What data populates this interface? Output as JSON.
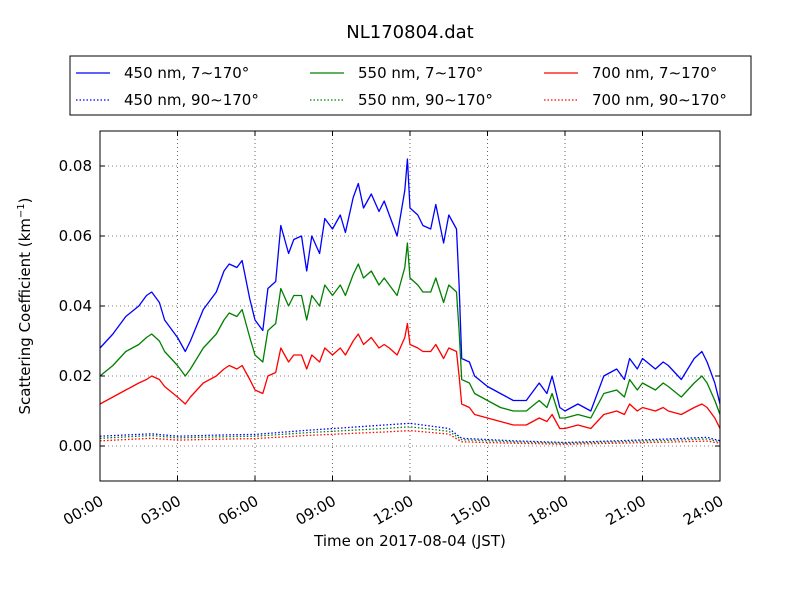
{
  "chart_data": {
    "type": "line",
    "title": "NL170804.dat",
    "xlabel": "Time on 2017-08-04 (JST)",
    "ylabel_main": "Scattering Coefficient (km",
    "ylabel_exp": "−1",
    "ylabel_close": ")",
    "xlim": [
      0,
      24
    ],
    "ylim": [
      -0.01,
      0.09
    ],
    "x_ticks": [
      0,
      3,
      6,
      9,
      12,
      15,
      18,
      21,
      24
    ],
    "x_tick_labels": [
      "00:00",
      "03:00",
      "06:00",
      "09:00",
      "12:00",
      "15:00",
      "18:00",
      "21:00",
      "24:00"
    ],
    "y_ticks": [
      0.0,
      0.02,
      0.04,
      0.06,
      0.08
    ],
    "y_tick_labels": [
      "0.00",
      "0.02",
      "0.04",
      "0.06",
      "0.08"
    ],
    "grid": true,
    "legend_placement": "top",
    "legend": [
      {
        "label": "450 nm, 7∼170°",
        "color": "#0000ff",
        "style": "solid"
      },
      {
        "label": "550 nm, 7∼170°",
        "color": "#008000",
        "style": "solid"
      },
      {
        "label": "700 nm, 7∼170°",
        "color": "#ff0000",
        "style": "solid"
      },
      {
        "label": "450 nm, 90∼170°",
        "color": "#0000ff",
        "style": "dotted"
      },
      {
        "label": "550 nm, 90∼170°",
        "color": "#008000",
        "style": "dotted"
      },
      {
        "label": "700 nm, 90∼170°",
        "color": "#ff0000",
        "style": "dotted"
      }
    ],
    "series": [
      {
        "name": "450 nm, 7∼170°",
        "color": "#0000ff",
        "style": "solid",
        "x": [
          0,
          0.5,
          1,
          1.5,
          1.8,
          2,
          2.3,
          2.5,
          3,
          3.3,
          3.5,
          4,
          4.5,
          4.8,
          5,
          5.3,
          5.5,
          5.8,
          6,
          6.3,
          6.5,
          6.8,
          7,
          7.3,
          7.5,
          7.8,
          8,
          8.2,
          8.5,
          8.7,
          9,
          9.3,
          9.5,
          9.8,
          10,
          10.2,
          10.5,
          10.8,
          11,
          11.2,
          11.5,
          11.8,
          11.9,
          12,
          12.3,
          12.5,
          12.8,
          13,
          13.3,
          13.5,
          13.8,
          13.9,
          14,
          14.3,
          14.5,
          15,
          15.5,
          16,
          16.5,
          17,
          17.3,
          17.5,
          17.8,
          18,
          18.5,
          19,
          19.5,
          20,
          20.3,
          20.5,
          20.8,
          21,
          21.5,
          21.8,
          22,
          22.5,
          23,
          23.3,
          23.5,
          23.8,
          24
        ],
        "y": [
          0.028,
          0.032,
          0.037,
          0.04,
          0.043,
          0.044,
          0.041,
          0.036,
          0.031,
          0.027,
          0.03,
          0.039,
          0.044,
          0.05,
          0.052,
          0.051,
          0.053,
          0.042,
          0.036,
          0.033,
          0.045,
          0.047,
          0.063,
          0.055,
          0.059,
          0.06,
          0.05,
          0.06,
          0.055,
          0.065,
          0.062,
          0.066,
          0.061,
          0.071,
          0.075,
          0.068,
          0.072,
          0.067,
          0.07,
          0.066,
          0.06,
          0.073,
          0.082,
          0.068,
          0.066,
          0.063,
          0.062,
          0.069,
          0.058,
          0.066,
          0.062,
          0.046,
          0.025,
          0.024,
          0.02,
          0.017,
          0.015,
          0.013,
          0.013,
          0.018,
          0.015,
          0.02,
          0.011,
          0.01,
          0.012,
          0.01,
          0.02,
          0.022,
          0.019,
          0.025,
          0.022,
          0.025,
          0.022,
          0.024,
          0.023,
          0.019,
          0.025,
          0.027,
          0.024,
          0.018,
          0.012
        ]
      },
      {
        "name": "550 nm, 7∼170°",
        "color": "#008000",
        "style": "solid",
        "x": [
          0,
          0.5,
          1,
          1.5,
          1.8,
          2,
          2.3,
          2.5,
          3,
          3.3,
          3.5,
          4,
          4.5,
          4.8,
          5,
          5.3,
          5.5,
          5.8,
          6,
          6.3,
          6.5,
          6.8,
          7,
          7.3,
          7.5,
          7.8,
          8,
          8.2,
          8.5,
          8.7,
          9,
          9.3,
          9.5,
          9.8,
          10,
          10.2,
          10.5,
          10.8,
          11,
          11.2,
          11.5,
          11.8,
          11.9,
          12,
          12.3,
          12.5,
          12.8,
          13,
          13.3,
          13.5,
          13.8,
          13.9,
          14,
          14.3,
          14.5,
          15,
          15.5,
          16,
          16.5,
          17,
          17.3,
          17.5,
          17.8,
          18,
          18.5,
          19,
          19.5,
          20,
          20.3,
          20.5,
          20.8,
          21,
          21.5,
          21.8,
          22,
          22.5,
          23,
          23.3,
          23.5,
          23.8,
          24
        ],
        "y": [
          0.02,
          0.023,
          0.027,
          0.029,
          0.031,
          0.032,
          0.03,
          0.027,
          0.023,
          0.02,
          0.022,
          0.028,
          0.032,
          0.036,
          0.038,
          0.037,
          0.039,
          0.031,
          0.026,
          0.024,
          0.033,
          0.035,
          0.045,
          0.04,
          0.043,
          0.043,
          0.036,
          0.043,
          0.04,
          0.046,
          0.043,
          0.046,
          0.043,
          0.049,
          0.052,
          0.048,
          0.05,
          0.046,
          0.048,
          0.046,
          0.043,
          0.051,
          0.058,
          0.048,
          0.046,
          0.044,
          0.044,
          0.048,
          0.041,
          0.046,
          0.044,
          0.033,
          0.019,
          0.018,
          0.015,
          0.013,
          0.011,
          0.01,
          0.01,
          0.013,
          0.011,
          0.015,
          0.008,
          0.008,
          0.009,
          0.008,
          0.015,
          0.016,
          0.014,
          0.019,
          0.016,
          0.018,
          0.016,
          0.018,
          0.017,
          0.014,
          0.018,
          0.02,
          0.018,
          0.013,
          0.009
        ]
      },
      {
        "name": "700 nm, 7∼170°",
        "color": "#ff0000",
        "style": "solid",
        "x": [
          0,
          0.5,
          1,
          1.5,
          1.8,
          2,
          2.3,
          2.5,
          3,
          3.3,
          3.5,
          4,
          4.5,
          4.8,
          5,
          5.3,
          5.5,
          5.8,
          6,
          6.3,
          6.5,
          6.8,
          7,
          7.3,
          7.5,
          7.8,
          8,
          8.2,
          8.5,
          8.7,
          9,
          9.3,
          9.5,
          9.8,
          10,
          10.2,
          10.5,
          10.8,
          11,
          11.2,
          11.5,
          11.8,
          11.9,
          12,
          12.3,
          12.5,
          12.8,
          13,
          13.3,
          13.5,
          13.8,
          13.9,
          14,
          14.3,
          14.5,
          15,
          15.5,
          16,
          16.5,
          17,
          17.3,
          17.5,
          17.8,
          18,
          18.5,
          19,
          19.5,
          20,
          20.3,
          20.5,
          20.8,
          21,
          21.5,
          21.8,
          22,
          22.5,
          23,
          23.3,
          23.5,
          23.8,
          24
        ],
        "y": [
          0.012,
          0.014,
          0.016,
          0.018,
          0.019,
          0.02,
          0.019,
          0.017,
          0.014,
          0.012,
          0.014,
          0.018,
          0.02,
          0.022,
          0.023,
          0.022,
          0.023,
          0.019,
          0.016,
          0.015,
          0.02,
          0.021,
          0.028,
          0.024,
          0.026,
          0.026,
          0.022,
          0.026,
          0.024,
          0.028,
          0.026,
          0.028,
          0.026,
          0.03,
          0.032,
          0.029,
          0.031,
          0.028,
          0.029,
          0.028,
          0.026,
          0.031,
          0.035,
          0.029,
          0.028,
          0.027,
          0.027,
          0.029,
          0.025,
          0.028,
          0.027,
          0.02,
          0.012,
          0.011,
          0.009,
          0.008,
          0.007,
          0.006,
          0.006,
          0.008,
          0.007,
          0.009,
          0.005,
          0.005,
          0.006,
          0.005,
          0.009,
          0.01,
          0.009,
          0.012,
          0.01,
          0.011,
          0.01,
          0.011,
          0.01,
          0.009,
          0.011,
          0.012,
          0.011,
          0.008,
          0.005
        ]
      },
      {
        "name": "450 nm, 90∼170°",
        "color": "#0000ff",
        "style": "dotted",
        "x": [
          0,
          2,
          3,
          5,
          6,
          8,
          10,
          11,
          12,
          13.5,
          14,
          16,
          18,
          20,
          22,
          23.5,
          24
        ],
        "y": [
          0.0028,
          0.0035,
          0.0028,
          0.0032,
          0.0033,
          0.0045,
          0.0055,
          0.006,
          0.0065,
          0.005,
          0.0022,
          0.0015,
          0.001,
          0.0015,
          0.002,
          0.0025,
          0.0015
        ]
      },
      {
        "name": "550 nm, 90∼170°",
        "color": "#008000",
        "style": "dotted",
        "x": [
          0,
          2,
          3,
          5,
          6,
          8,
          10,
          11,
          12,
          13.5,
          14,
          16,
          18,
          20,
          22,
          23.5,
          24
        ],
        "y": [
          0.0022,
          0.003,
          0.0023,
          0.0027,
          0.0028,
          0.0038,
          0.0046,
          0.005,
          0.0055,
          0.0042,
          0.0018,
          0.0012,
          0.0008,
          0.0012,
          0.0016,
          0.002,
          0.0012
        ]
      },
      {
        "name": "700 nm, 90∼170°",
        "color": "#ff0000",
        "style": "dotted",
        "x": [
          0,
          2,
          3,
          5,
          6,
          8,
          10,
          11,
          12,
          13.5,
          14,
          16,
          18,
          20,
          22,
          23.5,
          24
        ],
        "y": [
          0.0015,
          0.0022,
          0.0017,
          0.002,
          0.0021,
          0.003,
          0.0037,
          0.004,
          0.0044,
          0.0034,
          0.0012,
          0.0008,
          0.0005,
          0.0008,
          0.0011,
          0.0014,
          0.0008
        ]
      }
    ]
  }
}
